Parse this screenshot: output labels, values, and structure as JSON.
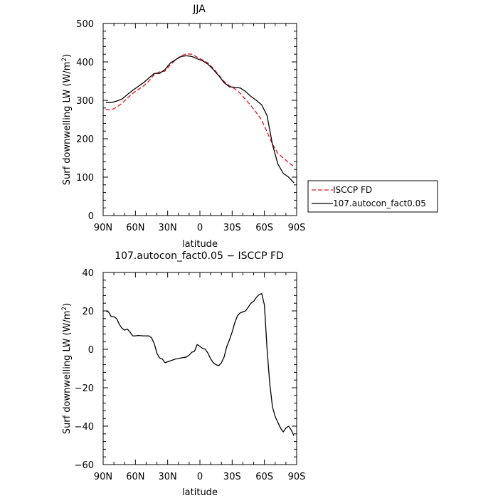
{
  "chart_data": [
    {
      "type": "line",
      "title": "JJA",
      "xlabel": "latitude",
      "ylabel_prefix": "Surf downwelling LW (W/m",
      "ylabel_sup": "2",
      "ylabel_suffix": ")",
      "xlim": [
        90,
        -90
      ],
      "ylim": [
        0,
        500
      ],
      "x_ticks": [
        90,
        60,
        30,
        0,
        -30,
        -60,
        -90
      ],
      "x_tick_labels": [
        "90N",
        "60N",
        "30N",
        "0",
        "30S",
        "60S",
        "90S"
      ],
      "y_ticks": [
        0,
        100,
        200,
        300,
        400,
        500
      ],
      "y_tick_labels": [
        "0",
        "100",
        "200",
        "300",
        "400",
        "500"
      ],
      "series": [
        {
          "name": "ISCCP FD",
          "color": "#e8141c",
          "style": "dashed",
          "x": [
            87.5,
            82.5,
            77.5,
            72.5,
            67.5,
            62.5,
            57.5,
            52.5,
            47.5,
            42.5,
            37.5,
            32.5,
            27.5,
            22.5,
            17.5,
            12.5,
            7.5,
            2.5,
            -2.5,
            -7.5,
            -12.5,
            -17.5,
            -22.5,
            -27.5,
            -32.5,
            -37.5,
            -42.5,
            -47.5,
            -52.5,
            -57.5,
            -62.5,
            -67.5,
            -72.5,
            -77.5,
            -82.5,
            -87.5
          ],
          "values": [
            276,
            275,
            282,
            292,
            306,
            318,
            328,
            337,
            350,
            367,
            374,
            376,
            392,
            406,
            416,
            421,
            420,
            412,
            405,
            397,
            383,
            366,
            349,
            338,
            330,
            318,
            302,
            286,
            268,
            248,
            218,
            186,
            162,
            150,
            138,
            128
          ]
        },
        {
          "name": "107.autocon_fact0.05",
          "color": "#000000",
          "style": "solid",
          "x": [
            87.5,
            82.5,
            77.5,
            72.5,
            67.5,
            62.5,
            57.5,
            52.5,
            47.5,
            42.5,
            37.5,
            32.5,
            27.5,
            22.5,
            17.5,
            12.5,
            7.5,
            2.5,
            -2.5,
            -7.5,
            -12.5,
            -17.5,
            -22.5,
            -27.5,
            -32.5,
            -37.5,
            -42.5,
            -47.5,
            -52.5,
            -57.5,
            -62.5,
            -67.5,
            -72.5,
            -77.5,
            -82.5,
            -87.5
          ],
          "values": [
            295,
            294,
            298,
            303,
            315,
            326,
            336,
            346,
            358,
            370,
            370,
            380,
            397,
            406,
            414,
            416,
            414,
            408,
            403,
            394,
            380,
            364,
            346,
            335,
            334,
            332,
            323,
            310,
            300,
            288,
            260,
            185,
            134,
            110,
            100,
            85
          ]
        }
      ]
    },
    {
      "type": "line",
      "title": "107.autocon_fact0.05 − ISCCP FD",
      "xlabel": "latitude",
      "ylabel_prefix": "Surf downwelling LW (W/m",
      "ylabel_sup": "2",
      "ylabel_suffix": ")",
      "xlim": [
        90,
        -90
      ],
      "ylim": [
        -60,
        40
      ],
      "x_ticks": [
        90,
        60,
        30,
        0,
        -30,
        -60,
        -90
      ],
      "x_tick_labels": [
        "90N",
        "60N",
        "30N",
        "0",
        "30S",
        "60S",
        "90S"
      ],
      "y_ticks": [
        -60,
        -40,
        -20,
        0,
        20,
        40
      ],
      "y_tick_labels": [
        "−60",
        "−40",
        "−20",
        "0",
        "20",
        "40"
      ],
      "series": [
        {
          "name": "",
          "color": "#000000",
          "style": "solid",
          "x": [
            87.5,
            85,
            82.5,
            80,
            77.5,
            75,
            72.5,
            70,
            67.5,
            65,
            62.5,
            60,
            57.5,
            52.5,
            47.5,
            45,
            42.5,
            40,
            37.5,
            35,
            32.5,
            30,
            27.5,
            25,
            22.5,
            20,
            17.5,
            12.5,
            10,
            7.5,
            5,
            2.5,
            0,
            -2.5,
            -5,
            -7.5,
            -10,
            -12.5,
            -15,
            -17.5,
            -20,
            -22.5,
            -25,
            -27.5,
            -30,
            -32.5,
            -35,
            -37.5,
            -40,
            -42.5,
            -45,
            -47.5,
            -50,
            -52.5,
            -55,
            -57.5,
            -60,
            -62.5,
            -65,
            -67.5,
            -70,
            -72.5,
            -75,
            -77.5,
            -80,
            -82.5,
            -85,
            -87.5
          ],
          "values": [
            20,
            19.5,
            17,
            17,
            16,
            13,
            11,
            10,
            10.5,
            9,
            7,
            7,
            7.2,
            7,
            7,
            6,
            3,
            -2,
            -4.5,
            -5,
            -7,
            -6.5,
            -6,
            -5.5,
            -5,
            -4.8,
            -4.5,
            -4,
            -3,
            -1.5,
            -1,
            2.5,
            1.5,
            0.5,
            0,
            -2,
            -5,
            -7,
            -8,
            -8.5,
            -7,
            -4,
            1.5,
            5,
            9,
            14,
            17.5,
            19,
            19.5,
            20,
            22,
            24,
            25,
            27,
            28.5,
            29,
            23,
            0,
            -18,
            -30,
            -35,
            -38,
            -41,
            -43,
            -41,
            -40,
            -42,
            -45
          ]
        }
      ]
    }
  ],
  "legend": [
    {
      "label": "ISCCP FD",
      "color": "#e8141c",
      "style": "dashed"
    },
    {
      "label": "107.autocon_fact0.05",
      "color": "#000000",
      "style": "solid"
    }
  ]
}
